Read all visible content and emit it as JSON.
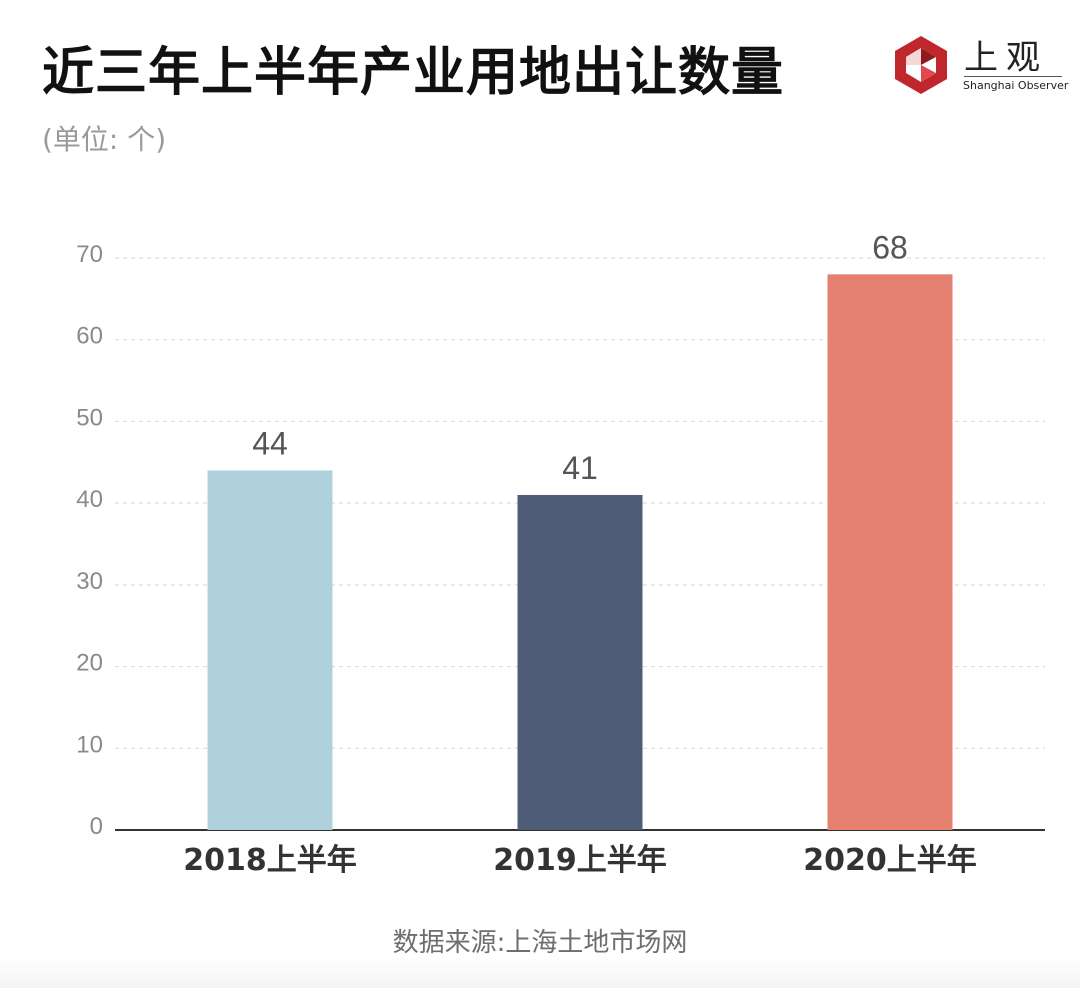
{
  "title": "近三年上半年产业用地出让数量",
  "unit_note": "(单位: 个)",
  "logo": {
    "name_cn": "上观",
    "name_en": "Shanghai Observer",
    "icon": "shanghai-observer-logo-icon",
    "color": "#c0272d"
  },
  "source": "数据来源:上海土地市场网",
  "chart_data": {
    "type": "bar",
    "title": "近三年上半年产业用地出让数量",
    "ylabel": "(单位: 个)",
    "xlabel": "",
    "categories": [
      "2018上半年",
      "2019上半年",
      "2020上半年"
    ],
    "values": [
      44,
      41,
      68
    ],
    "data_labels": [
      "44",
      "41",
      "68"
    ],
    "colors": [
      "#b0d1dc",
      "#4f5c78",
      "#e58170"
    ],
    "ylim": [
      0,
      70
    ],
    "yticks": [
      0,
      10,
      20,
      30,
      40,
      50,
      60,
      70
    ],
    "grid": true,
    "legend": "none"
  }
}
